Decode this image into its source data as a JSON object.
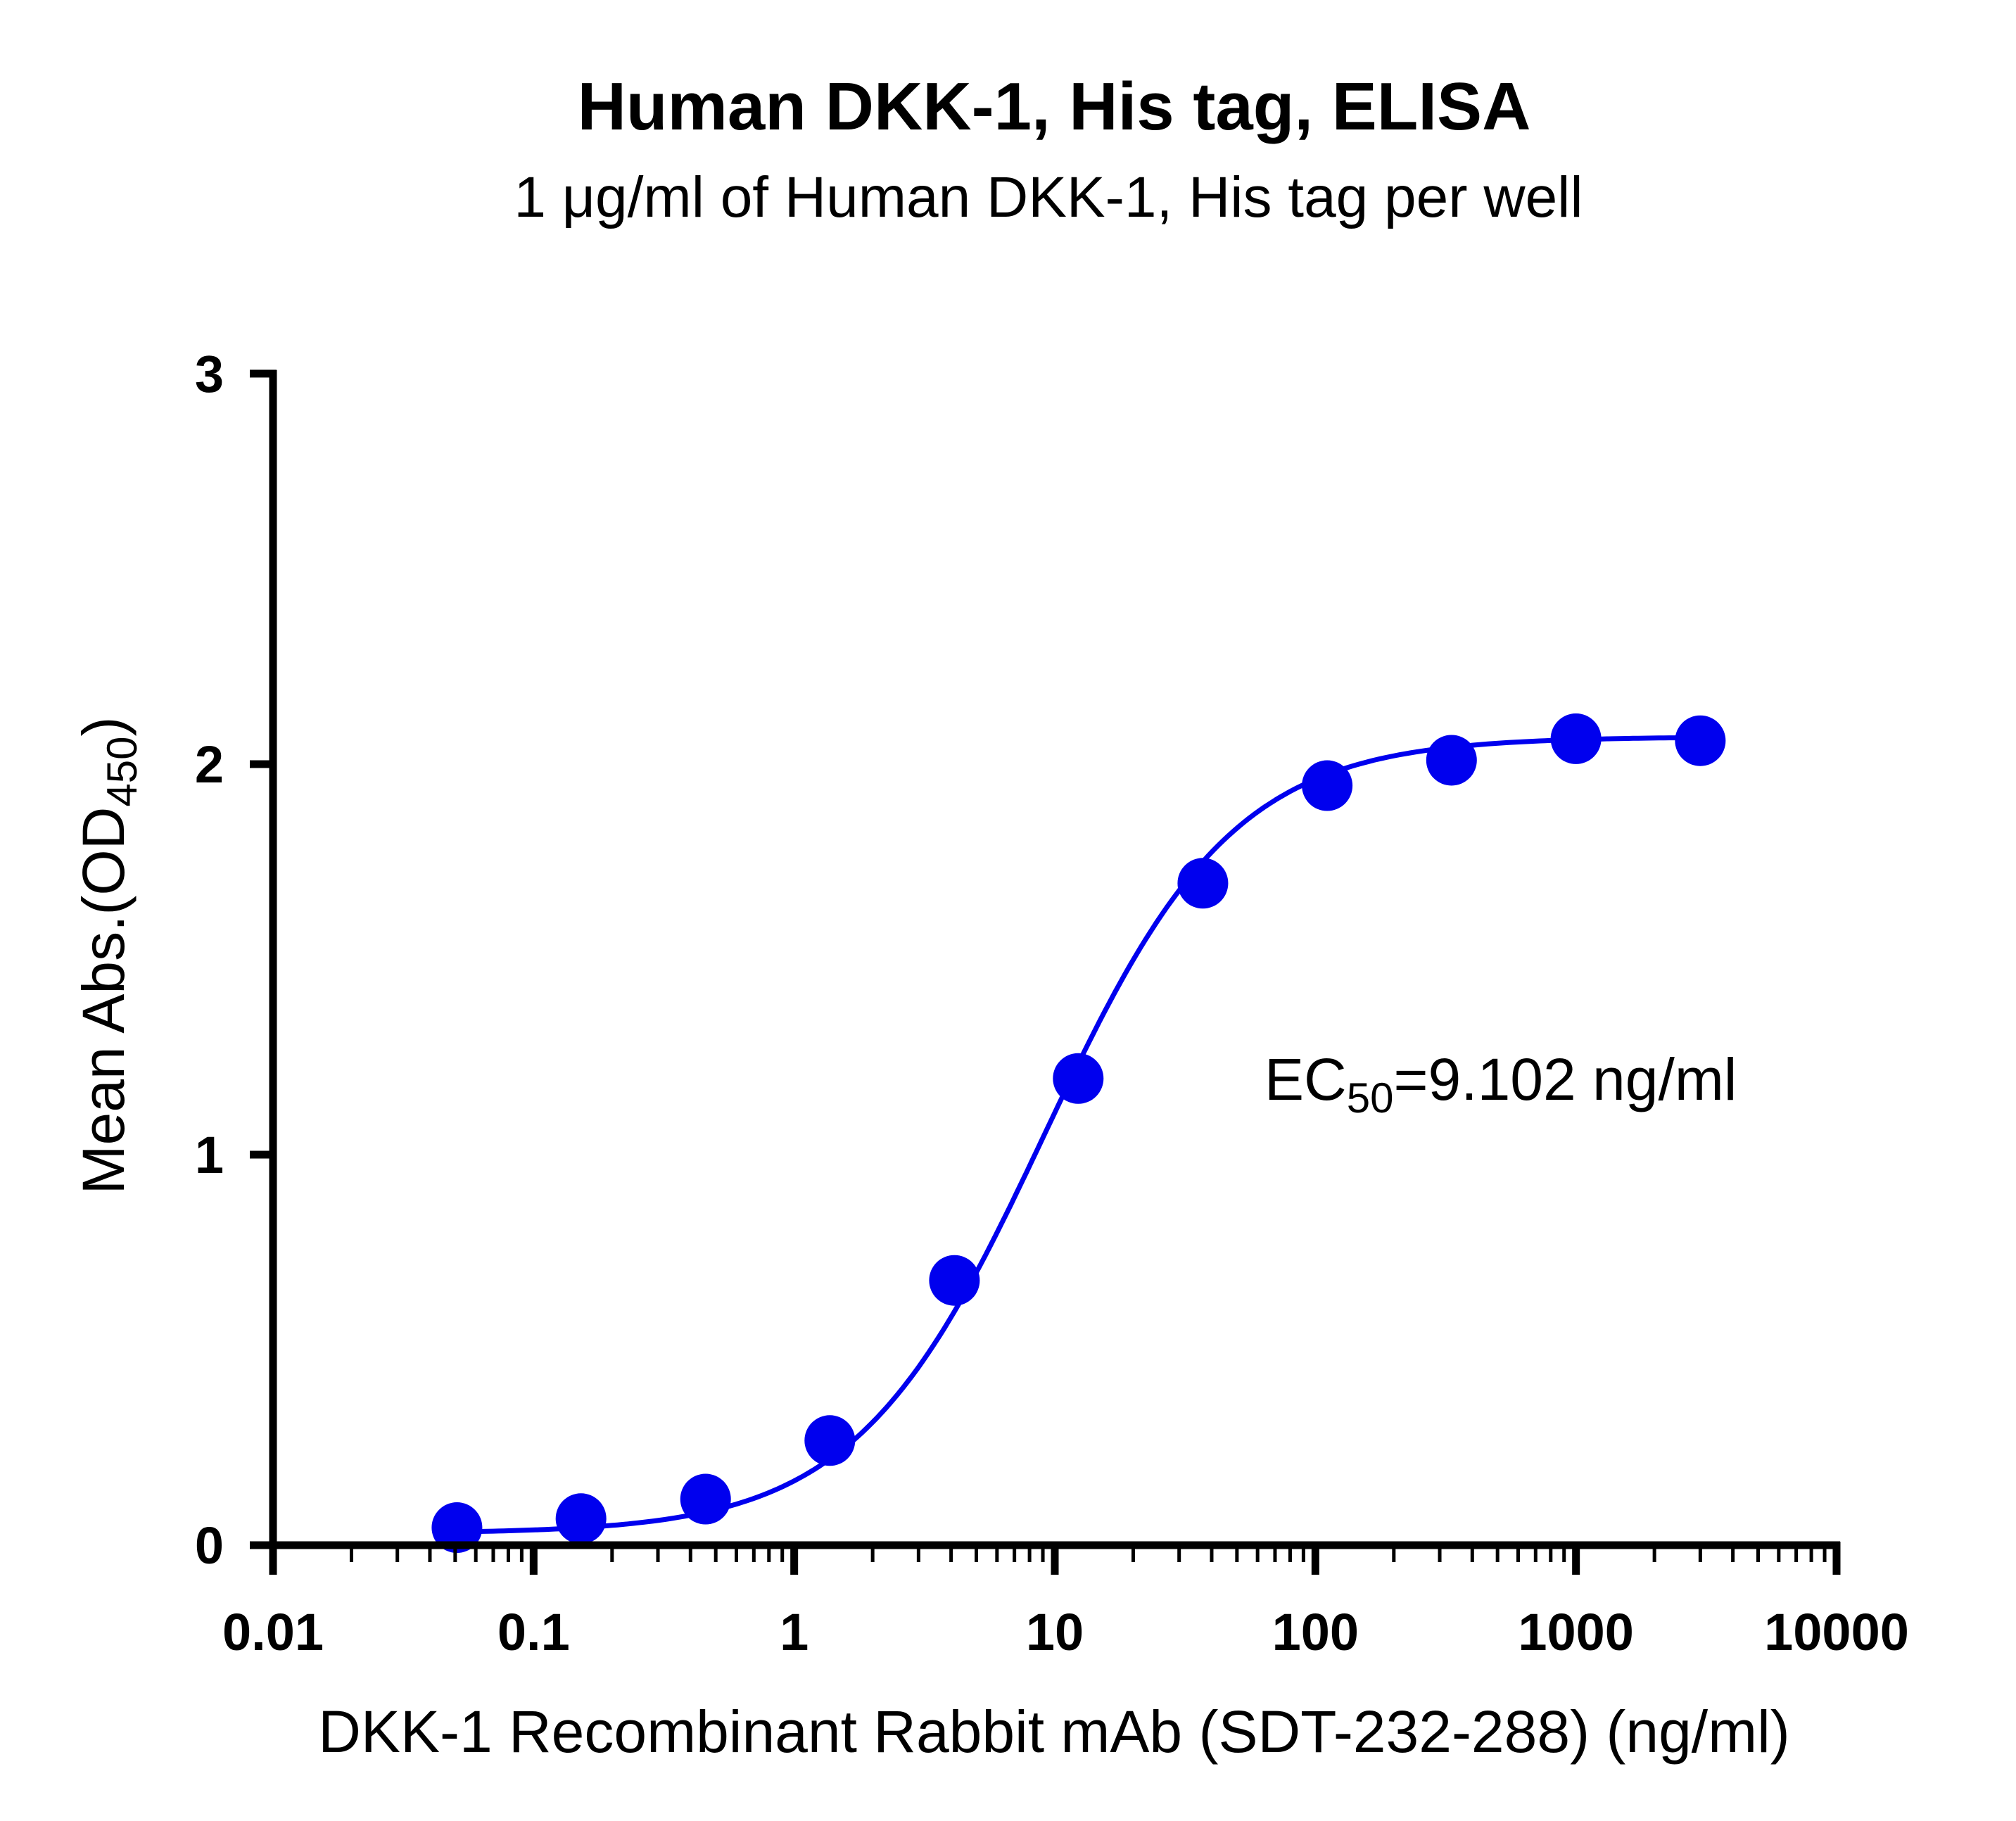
{
  "chart_data": {
    "type": "scatter",
    "title": "Human DKK-1, His tag, ELISA",
    "subtitle": "1 μg/ml of Human DKK-1, His tag per well",
    "xlabel": "DKK-1 Recombinant Rabbit mAb (SDT-232-288) (ng/ml)",
    "ylabel": {
      "text": "Mean Abs.(OD",
      "sub": "450",
      "tail": ")"
    },
    "x_scale": "log",
    "xlim": [
      0.01,
      10000
    ],
    "ylim": [
      0,
      3
    ],
    "x_ticks": [
      {
        "value": 0.01,
        "label": "0.01"
      },
      {
        "value": 0.1,
        "label": "0.1"
      },
      {
        "value": 1,
        "label": "1"
      },
      {
        "value": 10,
        "label": "10"
      },
      {
        "value": 100,
        "label": "100"
      },
      {
        "value": 1000,
        "label": "1000"
      },
      {
        "value": 10000,
        "label": "10000"
      }
    ],
    "y_ticks": [
      {
        "value": 0,
        "label": "0"
      },
      {
        "value": 1,
        "label": "1"
      },
      {
        "value": 2,
        "label": "2"
      },
      {
        "value": 3,
        "label": "3"
      }
    ],
    "points": {
      "x": [
        0.0508,
        0.152,
        0.457,
        1.37,
        4.12,
        12.3,
        37.0,
        111,
        333,
        1000,
        3000
      ],
      "y": [
        0.045,
        0.068,
        0.118,
        0.268,
        0.678,
        1.195,
        1.695,
        1.945,
        2.01,
        2.065,
        2.06
      ]
    },
    "fit": {
      "model": "4PL",
      "bottom": 0.03,
      "top": 2.07,
      "ec50": 9.102,
      "hill": 1.2,
      "x_range": [
        0.0508,
        3000
      ]
    },
    "annotation": {
      "prefix": "EC",
      "sub": "50",
      "suffix": "=9.102 ng/ml"
    },
    "colors": {
      "series": "#0000ee",
      "axis": "#000000"
    },
    "grid": false,
    "legend": "none"
  }
}
